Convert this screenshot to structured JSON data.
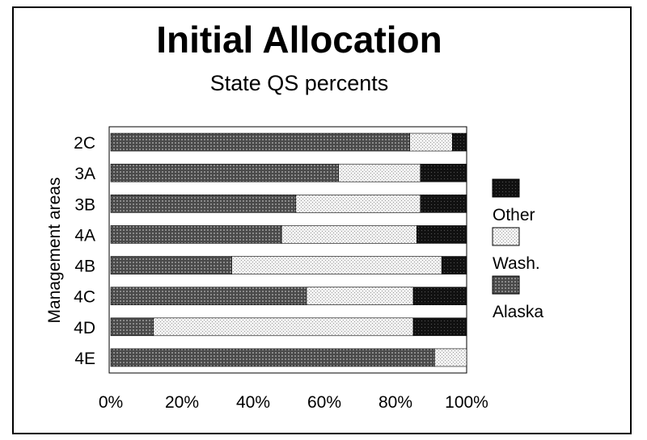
{
  "chart_data": {
    "type": "bar",
    "orientation": "horizontal",
    "stacked": true,
    "title": "Initial Allocation",
    "subtitle": "State QS percents",
    "ylabel": "Management areas",
    "xlabel": "",
    "xlim": [
      0,
      100
    ],
    "x_tick_labels": [
      "0%",
      "20%",
      "40%",
      "60%",
      "80%",
      "100%"
    ],
    "x_ticks": [
      0,
      20,
      40,
      60,
      80,
      100
    ],
    "categories": [
      "2C",
      "3A",
      "3B",
      "4A",
      "4B",
      "4C",
      "4D",
      "4E"
    ],
    "series": [
      {
        "name": "Alaska",
        "values": [
          84,
          64,
          52,
          48,
          34,
          55,
          12,
          91
        ]
      },
      {
        "name": "Wash.",
        "values": [
          12,
          23,
          35,
          38,
          59,
          30,
          73,
          9
        ]
      },
      {
        "name": "Other",
        "values": [
          4,
          13,
          13,
          14,
          7,
          15,
          15,
          0
        ]
      }
    ],
    "legend": {
      "placement": "right",
      "order": [
        "Other",
        "Wash.",
        "Alaska"
      ]
    },
    "grid": false,
    "colors": {
      "Alaska": "#5a5a5a",
      "Wash.": "#dcdcdc",
      "Other": "#1e1e1e"
    }
  }
}
